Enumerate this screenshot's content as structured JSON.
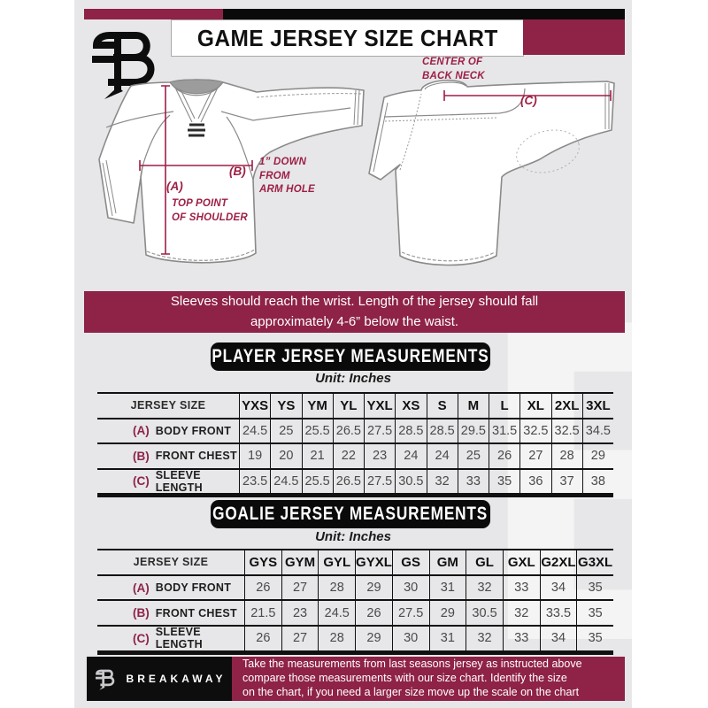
{
  "header": {
    "title": "GAME JERSEY SIZE CHART",
    "logo_glyph": "B"
  },
  "diagram": {
    "front": {
      "a_key": "(A)",
      "a_note1": "TOP POINT",
      "a_note2": "OF SHOULDER",
      "b_key": "(B)",
      "b_note1": "1” DOWN",
      "b_note2": "FROM",
      "b_note3": "ARM HOLE"
    },
    "back": {
      "c_note1": "CENTER OF",
      "c_note2": "BACK NECK",
      "c_key": "(C)"
    }
  },
  "banner": {
    "line1": "Sleeves should reach the wrist. Length of the jersey should fall",
    "line2": "approximately 4-6” below the waist."
  },
  "player_table": {
    "heading": "PLAYER JERSEY MEASUREMENTS",
    "unit": "Unit: Inches",
    "size_header": "JERSEY SIZE",
    "sizes": [
      "YXS",
      "YS",
      "YM",
      "YL",
      "YXL",
      "XS",
      "S",
      "M",
      "L",
      "XL",
      "2XL",
      "3XL"
    ],
    "rows": [
      {
        "key": "(A)",
        "label": "BODY FRONT",
        "values": [
          "24.5",
          "25",
          "25.5",
          "26.5",
          "27.5",
          "28.5",
          "28.5",
          "29.5",
          "31.5",
          "32.5",
          "32.5",
          "34.5"
        ]
      },
      {
        "key": "(B)",
        "label": "FRONT CHEST",
        "values": [
          "19",
          "20",
          "21",
          "22",
          "23",
          "24",
          "24",
          "25",
          "26",
          "27",
          "28",
          "29"
        ]
      },
      {
        "key": "(C)",
        "label": "SLEEVE LENGTH",
        "values": [
          "23.5",
          "24.5",
          "25.5",
          "26.5",
          "27.5",
          "30.5",
          "32",
          "33",
          "35",
          "36",
          "37",
          "38"
        ]
      }
    ]
  },
  "goalie_table": {
    "heading": "GOALIE JERSEY MEASUREMENTS",
    "unit": "Unit: Inches",
    "size_header": "JERSEY SIZE",
    "sizes": [
      "GYS",
      "GYM",
      "GYL",
      "GYXL",
      "GS",
      "GM",
      "GL",
      "GXL",
      "G2XL",
      "G3XL"
    ],
    "rows": [
      {
        "key": "(A)",
        "label": "BODY FRONT",
        "values": [
          "26",
          "27",
          "28",
          "29",
          "30",
          "31",
          "32",
          "33",
          "34",
          "35"
        ]
      },
      {
        "key": "(B)",
        "label": "FRONT CHEST",
        "values": [
          "21.5",
          "23",
          "24.5",
          "26",
          "27.5",
          "29",
          "30.5",
          "32",
          "33.5",
          "35"
        ]
      },
      {
        "key": "(C)",
        "label": "SLEEVE LENGTH",
        "values": [
          "26",
          "27",
          "28",
          "29",
          "30",
          "31",
          "32",
          "33",
          "34",
          "35"
        ]
      }
    ]
  },
  "footer": {
    "brand": "BREAKAWAY",
    "line1": "Take the measurements from last seasons jersey as instructed above",
    "line2": "compare those measurements  with our size chart. Identify the size",
    "line3": "on the chart, if you need a larger size move up the scale on the chart"
  },
  "watermark": "B",
  "colors": {
    "maroon": "#8e2247",
    "diagram_accent": "#9d1f45",
    "header_black": "#0a0a0a",
    "page_bg": "#e7e7e9"
  }
}
